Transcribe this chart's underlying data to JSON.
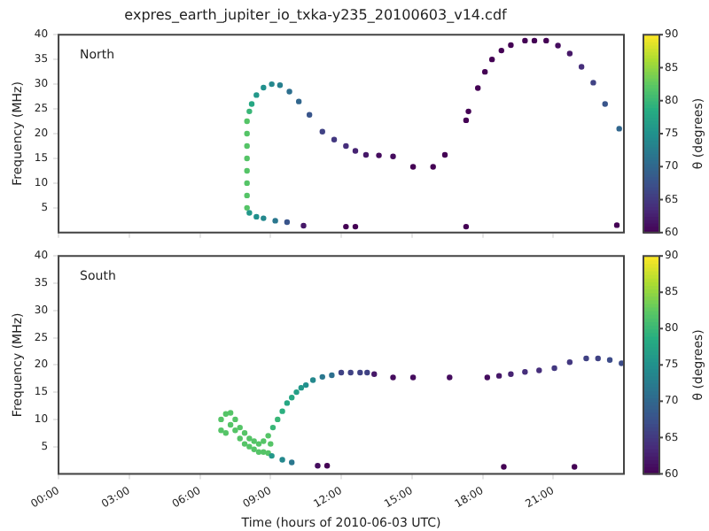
{
  "chart_data": [
    {
      "type": "scatter",
      "title": "expres_earth_jupiter_io_txka-y235_20100603_v14.cdf",
      "ylabel": "Frequency (MHz)",
      "clabel": "θ (degrees)",
      "annotations": [
        "North"
      ],
      "x": [
        8.0,
        8.0,
        8.0,
        8.0,
        8.0,
        8.0,
        8.0,
        8.0,
        8.1,
        8.2,
        8.4,
        8.7,
        9.05,
        9.4,
        9.8,
        10.2,
        10.65,
        11.2,
        11.7,
        12.2,
        12.6,
        13.05,
        13.6,
        14.2,
        15.05,
        15.9,
        16.4,
        17.3,
        17.4,
        17.8,
        18.1,
        18.4,
        18.8,
        19.2,
        19.8,
        20.2,
        20.7,
        21.2,
        21.7,
        22.2,
        22.7,
        23.2,
        23.8,
        8.1,
        8.4,
        8.7,
        9.2,
        9.7,
        10.4,
        12.2,
        12.6,
        17.3,
        23.7
      ],
      "values": [
        5,
        7.5,
        10,
        12.5,
        15,
        17.5,
        20,
        22.5,
        24.5,
        26,
        27.8,
        29.3,
        30,
        29.8,
        28.5,
        26.5,
        23.8,
        20.4,
        18.8,
        17.5,
        16.5,
        15.7,
        15.6,
        15.4,
        13.3,
        13.3,
        15.7,
        22.7,
        24.5,
        29.2,
        32.5,
        35,
        36.8,
        37.9,
        38.8,
        38.8,
        38.8,
        37.8,
        36.2,
        33.5,
        30.3,
        26,
        21,
        4,
        3.2,
        2.9,
        2.4,
        2.1,
        1.4,
        1.2,
        1.2,
        1.2,
        1.5
      ],
      "cvalues": [
        82,
        82,
        82,
        82,
        82,
        82,
        82,
        82,
        80,
        78,
        76,
        75,
        74,
        73,
        71,
        70,
        68,
        66,
        65,
        64,
        63,
        62,
        61,
        61,
        60,
        60,
        60,
        60,
        60,
        60,
        60,
        60,
        60,
        60,
        60,
        60,
        60,
        61,
        62,
        64,
        66,
        68,
        70,
        76,
        75,
        74,
        72,
        68,
        62,
        60,
        60,
        60,
        60
      ],
      "xlim": [
        0,
        24
      ],
      "xticks": [
        {
          "value": 0,
          "label": null
        },
        {
          "value": 3,
          "label": null
        },
        {
          "value": 6,
          "label": null
        },
        {
          "value": 9,
          "label": null
        },
        {
          "value": 12,
          "label": null
        },
        {
          "value": 15,
          "label": null
        },
        {
          "value": 18,
          "label": null
        },
        {
          "value": 21,
          "label": null
        }
      ],
      "ylim": [
        0,
        40
      ],
      "yticks": [
        5,
        10,
        15,
        20,
        25,
        30,
        35,
        40
      ],
      "clim": [
        60,
        90
      ],
      "cticks": [
        60,
        65,
        70,
        75,
        80,
        85,
        90
      ],
      "tick_labels": "y",
      "marker": "circle"
    },
    {
      "type": "scatter",
      "xlabel": "Time (hours of 2010-06-03 UTC)",
      "ylabel": "Frequency (MHz)",
      "clabel": "θ (degrees)",
      "annotations": [
        "South"
      ],
      "x": [
        6.9,
        7.1,
        7.3,
        6.9,
        7.1,
        7.3,
        7.5,
        7.5,
        7.7,
        7.7,
        7.9,
        7.9,
        8.1,
        8.1,
        8.3,
        8.3,
        8.5,
        8.5,
        8.7,
        8.7,
        8.9,
        8.9,
        9.0,
        9.1,
        9.3,
        9.5,
        9.7,
        9.9,
        10.1,
        10.3,
        10.5,
        10.8,
        11.2,
        11.6,
        12.0,
        12.4,
        12.8,
        13.1,
        13.4,
        14.2,
        15.05,
        16.6,
        18.2,
        18.7,
        19.2,
        19.8,
        20.4,
        21.05,
        21.7,
        22.4,
        22.9,
        23.4,
        23.9,
        9.05,
        9.5,
        9.9,
        11.0,
        11.4,
        18.9,
        21.9
      ],
      "values": [
        10,
        11,
        11.2,
        8,
        7.5,
        9,
        10,
        8,
        8.5,
        6.5,
        7.5,
        5.5,
        6.5,
        5,
        6,
        4.5,
        5.5,
        4,
        6,
        4,
        7,
        3.8,
        5.5,
        8.5,
        10,
        11.5,
        13,
        14,
        15,
        15.8,
        16.3,
        17.2,
        17.8,
        18.1,
        18.6,
        18.6,
        18.6,
        18.6,
        18.3,
        17.7,
        17.7,
        17.7,
        17.7,
        18,
        18.3,
        18.7,
        19,
        19.4,
        20.5,
        21.2,
        21.2,
        20.9,
        20.3,
        3.3,
        2.6,
        2.1,
        1.5,
        1.5,
        1.3,
        1.3
      ],
      "cvalues": [
        82,
        82,
        82,
        82,
        82,
        82,
        82,
        82,
        82,
        82,
        82,
        82,
        82,
        82,
        82,
        82,
        82,
        82,
        82,
        82,
        82,
        82,
        82,
        80,
        80,
        79,
        78,
        78,
        77,
        76,
        75,
        74,
        72,
        71,
        66,
        66,
        66,
        66,
        62,
        61,
        61,
        61,
        61,
        62,
        63,
        64,
        64,
        65,
        65,
        66,
        66,
        67,
        67,
        76,
        74,
        72,
        61,
        60,
        60,
        60
      ],
      "xlim": [
        0,
        24
      ],
      "xticks": [
        {
          "value": 0,
          "label": "00:00"
        },
        {
          "value": 3,
          "label": "03:00"
        },
        {
          "value": 6,
          "label": "06:00"
        },
        {
          "value": 9,
          "label": "09:00"
        },
        {
          "value": 12,
          "label": "12:00"
        },
        {
          "value": 15,
          "label": "15:00"
        },
        {
          "value": 18,
          "label": "18:00"
        },
        {
          "value": 21,
          "label": "21:00"
        }
      ],
      "ylim": [
        0,
        40
      ],
      "yticks": [
        5,
        10,
        15,
        20,
        25,
        30,
        35,
        40
      ],
      "clim": [
        60,
        90
      ],
      "cticks": [
        60,
        65,
        70,
        75,
        80,
        85,
        90
      ],
      "marker": "circle"
    }
  ]
}
